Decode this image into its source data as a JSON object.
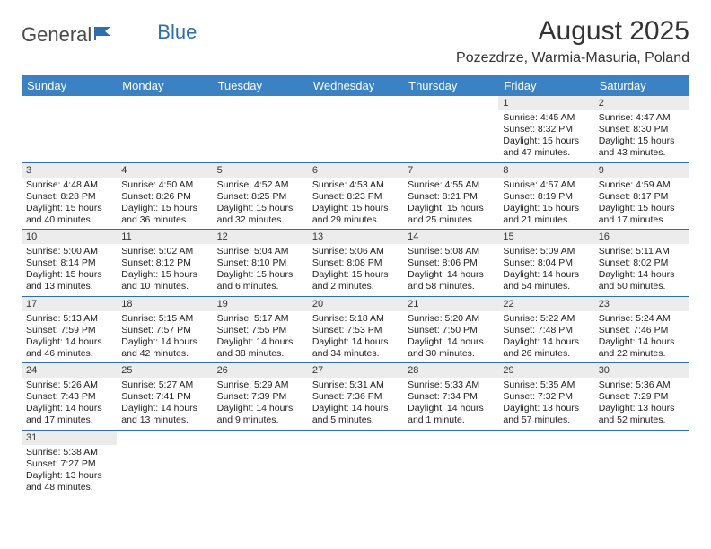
{
  "logo": {
    "text_general": "General",
    "text_blue": "Blue"
  },
  "title": "August 2025",
  "location": "Pozezdrze, Warmia-Masuria, Poland",
  "colors": {
    "header_bg": "#3b82c4",
    "header_fg": "#ffffff",
    "row_divider": "#2f6fa7",
    "daynum_bg": "#ececec",
    "text": "#333333"
  },
  "weekdays": [
    "Sunday",
    "Monday",
    "Tuesday",
    "Wednesday",
    "Thursday",
    "Friday",
    "Saturday"
  ],
  "weeks": [
    [
      null,
      null,
      null,
      null,
      null,
      {
        "n": "1",
        "sr": "Sunrise: 4:45 AM",
        "ss": "Sunset: 8:32 PM",
        "dl": "Daylight: 15 hours and 47 minutes."
      },
      {
        "n": "2",
        "sr": "Sunrise: 4:47 AM",
        "ss": "Sunset: 8:30 PM",
        "dl": "Daylight: 15 hours and 43 minutes."
      }
    ],
    [
      {
        "n": "3",
        "sr": "Sunrise: 4:48 AM",
        "ss": "Sunset: 8:28 PM",
        "dl": "Daylight: 15 hours and 40 minutes."
      },
      {
        "n": "4",
        "sr": "Sunrise: 4:50 AM",
        "ss": "Sunset: 8:26 PM",
        "dl": "Daylight: 15 hours and 36 minutes."
      },
      {
        "n": "5",
        "sr": "Sunrise: 4:52 AM",
        "ss": "Sunset: 8:25 PM",
        "dl": "Daylight: 15 hours and 32 minutes."
      },
      {
        "n": "6",
        "sr": "Sunrise: 4:53 AM",
        "ss": "Sunset: 8:23 PM",
        "dl": "Daylight: 15 hours and 29 minutes."
      },
      {
        "n": "7",
        "sr": "Sunrise: 4:55 AM",
        "ss": "Sunset: 8:21 PM",
        "dl": "Daylight: 15 hours and 25 minutes."
      },
      {
        "n": "8",
        "sr": "Sunrise: 4:57 AM",
        "ss": "Sunset: 8:19 PM",
        "dl": "Daylight: 15 hours and 21 minutes."
      },
      {
        "n": "9",
        "sr": "Sunrise: 4:59 AM",
        "ss": "Sunset: 8:17 PM",
        "dl": "Daylight: 15 hours and 17 minutes."
      }
    ],
    [
      {
        "n": "10",
        "sr": "Sunrise: 5:00 AM",
        "ss": "Sunset: 8:14 PM",
        "dl": "Daylight: 15 hours and 13 minutes."
      },
      {
        "n": "11",
        "sr": "Sunrise: 5:02 AM",
        "ss": "Sunset: 8:12 PM",
        "dl": "Daylight: 15 hours and 10 minutes."
      },
      {
        "n": "12",
        "sr": "Sunrise: 5:04 AM",
        "ss": "Sunset: 8:10 PM",
        "dl": "Daylight: 15 hours and 6 minutes."
      },
      {
        "n": "13",
        "sr": "Sunrise: 5:06 AM",
        "ss": "Sunset: 8:08 PM",
        "dl": "Daylight: 15 hours and 2 minutes."
      },
      {
        "n": "14",
        "sr": "Sunrise: 5:08 AM",
        "ss": "Sunset: 8:06 PM",
        "dl": "Daylight: 14 hours and 58 minutes."
      },
      {
        "n": "15",
        "sr": "Sunrise: 5:09 AM",
        "ss": "Sunset: 8:04 PM",
        "dl": "Daylight: 14 hours and 54 minutes."
      },
      {
        "n": "16",
        "sr": "Sunrise: 5:11 AM",
        "ss": "Sunset: 8:02 PM",
        "dl": "Daylight: 14 hours and 50 minutes."
      }
    ],
    [
      {
        "n": "17",
        "sr": "Sunrise: 5:13 AM",
        "ss": "Sunset: 7:59 PM",
        "dl": "Daylight: 14 hours and 46 minutes."
      },
      {
        "n": "18",
        "sr": "Sunrise: 5:15 AM",
        "ss": "Sunset: 7:57 PM",
        "dl": "Daylight: 14 hours and 42 minutes."
      },
      {
        "n": "19",
        "sr": "Sunrise: 5:17 AM",
        "ss": "Sunset: 7:55 PM",
        "dl": "Daylight: 14 hours and 38 minutes."
      },
      {
        "n": "20",
        "sr": "Sunrise: 5:18 AM",
        "ss": "Sunset: 7:53 PM",
        "dl": "Daylight: 14 hours and 34 minutes."
      },
      {
        "n": "21",
        "sr": "Sunrise: 5:20 AM",
        "ss": "Sunset: 7:50 PM",
        "dl": "Daylight: 14 hours and 30 minutes."
      },
      {
        "n": "22",
        "sr": "Sunrise: 5:22 AM",
        "ss": "Sunset: 7:48 PM",
        "dl": "Daylight: 14 hours and 26 minutes."
      },
      {
        "n": "23",
        "sr": "Sunrise: 5:24 AM",
        "ss": "Sunset: 7:46 PM",
        "dl": "Daylight: 14 hours and 22 minutes."
      }
    ],
    [
      {
        "n": "24",
        "sr": "Sunrise: 5:26 AM",
        "ss": "Sunset: 7:43 PM",
        "dl": "Daylight: 14 hours and 17 minutes."
      },
      {
        "n": "25",
        "sr": "Sunrise: 5:27 AM",
        "ss": "Sunset: 7:41 PM",
        "dl": "Daylight: 14 hours and 13 minutes."
      },
      {
        "n": "26",
        "sr": "Sunrise: 5:29 AM",
        "ss": "Sunset: 7:39 PM",
        "dl": "Daylight: 14 hours and 9 minutes."
      },
      {
        "n": "27",
        "sr": "Sunrise: 5:31 AM",
        "ss": "Sunset: 7:36 PM",
        "dl": "Daylight: 14 hours and 5 minutes."
      },
      {
        "n": "28",
        "sr": "Sunrise: 5:33 AM",
        "ss": "Sunset: 7:34 PM",
        "dl": "Daylight: 14 hours and 1 minute."
      },
      {
        "n": "29",
        "sr": "Sunrise: 5:35 AM",
        "ss": "Sunset: 7:32 PM",
        "dl": "Daylight: 13 hours and 57 minutes."
      },
      {
        "n": "30",
        "sr": "Sunrise: 5:36 AM",
        "ss": "Sunset: 7:29 PM",
        "dl": "Daylight: 13 hours and 52 minutes."
      }
    ],
    [
      {
        "n": "31",
        "sr": "Sunrise: 5:38 AM",
        "ss": "Sunset: 7:27 PM",
        "dl": "Daylight: 13 hours and 48 minutes."
      },
      null,
      null,
      null,
      null,
      null,
      null
    ]
  ]
}
